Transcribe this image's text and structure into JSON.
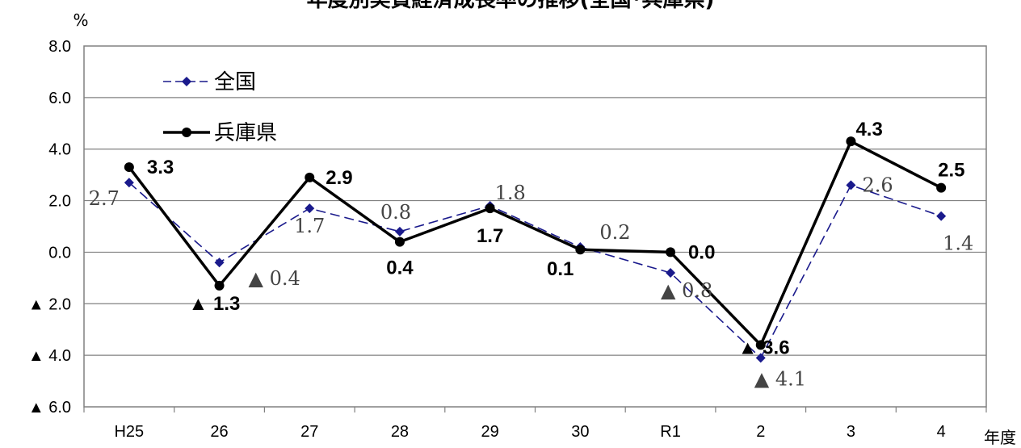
{
  "chart_data": {
    "type": "line",
    "title": "年度別実質経済成長率の推移(全国･兵庫県)",
    "y_unit": "%",
    "x_unit": "年度",
    "categories": [
      "H25",
      "26",
      "27",
      "28",
      "29",
      "30",
      "R1",
      "2",
      "3",
      "4"
    ],
    "ylim": [
      -6.0,
      8.0
    ],
    "y_ticks": [
      8.0,
      6.0,
      4.0,
      2.0,
      0.0,
      -2.0,
      -4.0,
      -6.0
    ],
    "y_tick_labels": [
      "8.0",
      "6.0",
      "4.0",
      "2.0",
      "0.0",
      "▲ 2.0",
      "▲ 4.0",
      "▲ 6.0"
    ],
    "grid": true,
    "legend_position": "top-left",
    "series": [
      {
        "name": "全国",
        "style": "dashed-diamond",
        "color": "#1a1a8c",
        "values": [
          2.7,
          -0.4,
          1.7,
          0.8,
          1.8,
          0.2,
          -0.8,
          -4.1,
          2.6,
          1.4
        ],
        "labels": [
          "2.7",
          "▲ 0.4",
          "1.7",
          "0.8",
          "1.8",
          "0.2",
          "▲ 0.8",
          "▲ 4.1",
          "2.6",
          "1.4"
        ]
      },
      {
        "name": "兵庫県",
        "style": "solid-circle",
        "color": "#000000",
        "values": [
          3.3,
          -1.3,
          2.9,
          0.4,
          1.7,
          0.1,
          0.0,
          -3.6,
          4.3,
          2.5
        ],
        "labels": [
          "3.3",
          "▲ 1.3",
          "2.9",
          "0.4",
          "1.7",
          "0.1",
          "0.0",
          "▲ 3.6",
          "4.3",
          "2.5"
        ]
      }
    ]
  }
}
